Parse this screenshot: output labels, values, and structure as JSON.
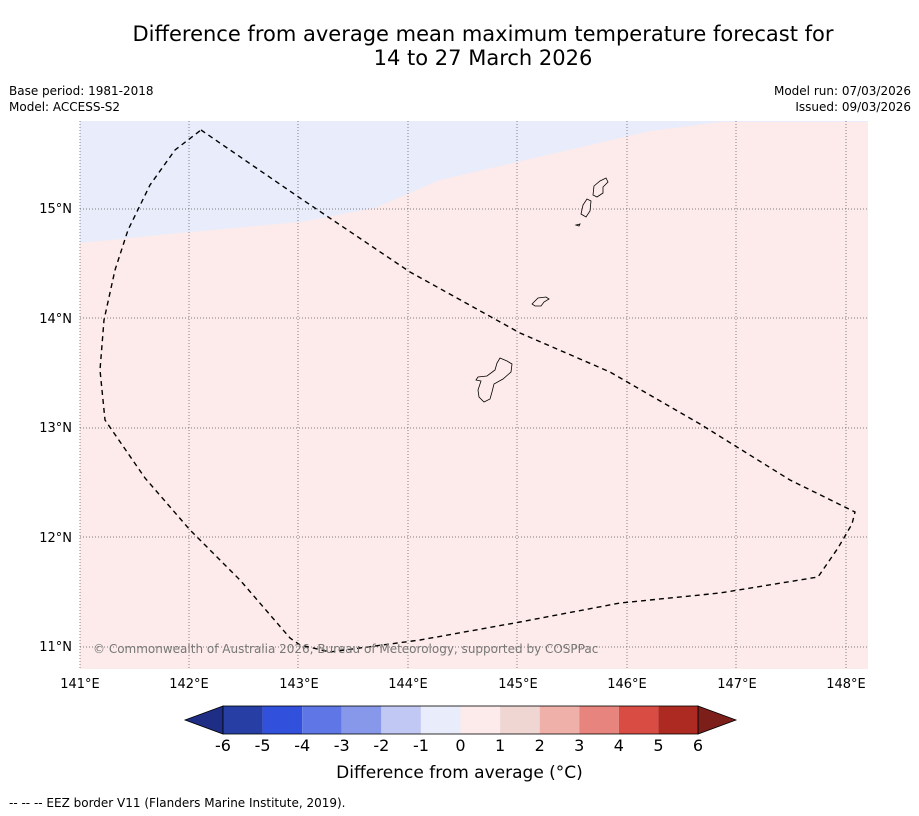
{
  "title": {
    "line1": "Difference from average mean maximum temperature forecast for",
    "line2": "14 to 27 March 2026"
  },
  "meta": {
    "base_period": "Base period: 1981-2018",
    "model": "Model: ACCESS-S2",
    "model_run": "Model run: 07/03/2026",
    "issued": "Issued: 09/03/2026"
  },
  "map": {
    "lon_labels": [
      "141°E",
      "142°E",
      "143°E",
      "144°E",
      "145°E",
      "146°E",
      "147°E",
      "148°E"
    ],
    "lat_labels": [
      "15°N",
      "14°N",
      "13°N",
      "12°N",
      "11°N"
    ],
    "copyright": "© Commonwealth of Australia 2026, Bureau of Meteorology, supported by COSPPac",
    "colors": {
      "cool_area": "#e8ecfb",
      "warm_area": "#fcebea",
      "grid": "#555555",
      "eez": "#000000"
    }
  },
  "colorbar": {
    "ticks": [
      "-6",
      "-5",
      "-4",
      "-3",
      "-2",
      "-1",
      "0",
      "1",
      "2",
      "3",
      "4",
      "5",
      "6"
    ],
    "colors": [
      "#273ea4",
      "#3150dc",
      "#5e76e6",
      "#8798ea",
      "#c1c8f3",
      "#e8ecfb",
      "#fcebea",
      "#efd6d3",
      "#efb0aa",
      "#e7847d",
      "#d84c43",
      "#ad2a22"
    ],
    "under_color": "#1e2e85",
    "over_color": "#7c1f1a",
    "title": "Difference from average (°C)"
  },
  "legend_note": "--  --  -- EEZ border V11 (Flanders Marine Institute, 2019)."
}
